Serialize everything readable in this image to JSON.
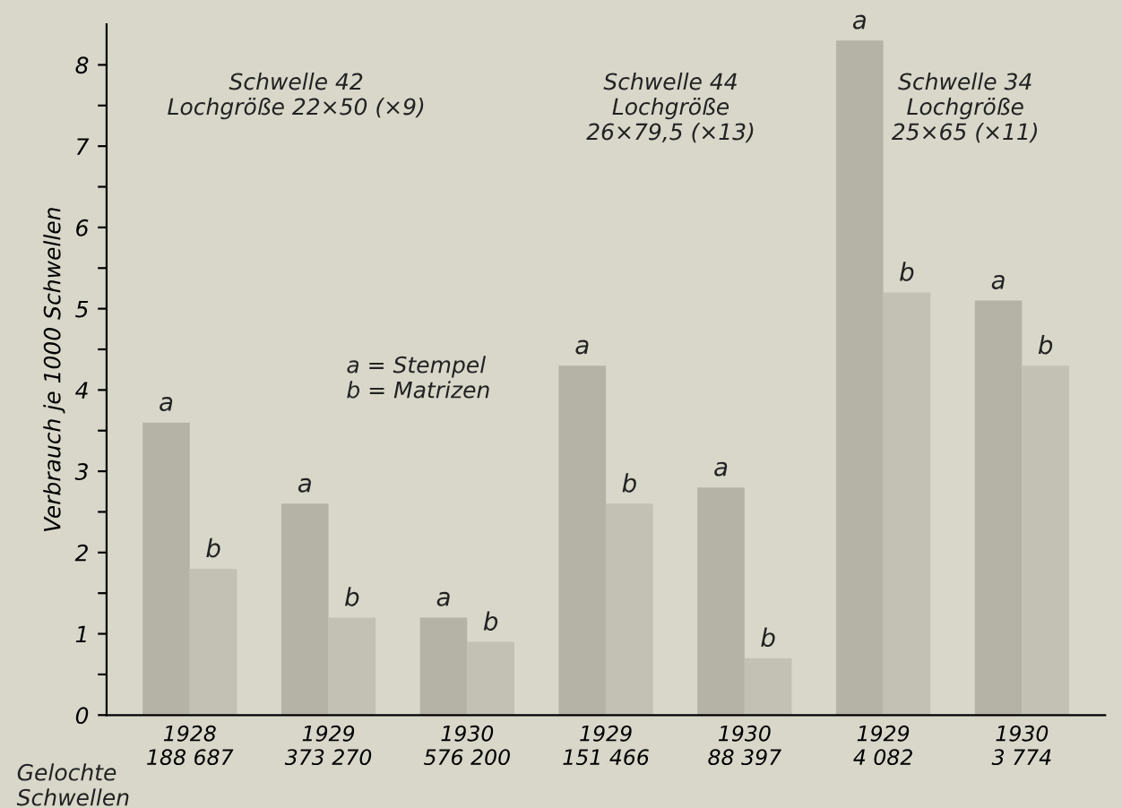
{
  "chart_data": {
    "type": "bar",
    "ylabel": "Verbrauch je 1000 Schwellen",
    "categories": [
      "1928\n188 687",
      "1929\n373 270",
      "1930\n576 200",
      "1929\n151 466",
      "1930\n88 397",
      "1929\n4 082",
      "1930\n3 774"
    ],
    "series": [
      {
        "name": "a",
        "color": "#b4b3a6",
        "values": [
          3.6,
          2.6,
          1.2,
          4.3,
          2.8,
          8.3,
          5.1
        ]
      },
      {
        "name": "b",
        "color": "#c2c1b4",
        "values": [
          1.8,
          1.2,
          0.9,
          2.6,
          0.7,
          5.2,
          4.3
        ]
      }
    ],
    "ylim": [
      0,
      8.5
    ],
    "yticks": [
      0,
      {
        "value": 0.5,
        "label": null
      },
      1,
      {
        "value": 1.5,
        "label": null
      },
      2,
      {
        "value": 2.5,
        "label": null
      },
      3,
      {
        "value": 3.5,
        "label": null
      },
      4,
      {
        "value": 4.5,
        "label": null
      },
      5,
      {
        "value": 5.5,
        "label": null
      },
      6,
      {
        "value": 6.5,
        "label": null
      },
      7,
      {
        "value": 7.5,
        "label": null
      },
      8
    ],
    "annotations": [
      "Schwelle 42\nLochgröße 22×50 (×9)",
      "Schwelle 44\nLochgröße\n26×79,5 (×13)",
      "Schwelle 34\nLochgröße\n25×65 (×11)",
      "a = Stempel\nb = Matrizen",
      "Gelochte\nSchwellen"
    ],
    "grid": false,
    "legend": false
  }
}
